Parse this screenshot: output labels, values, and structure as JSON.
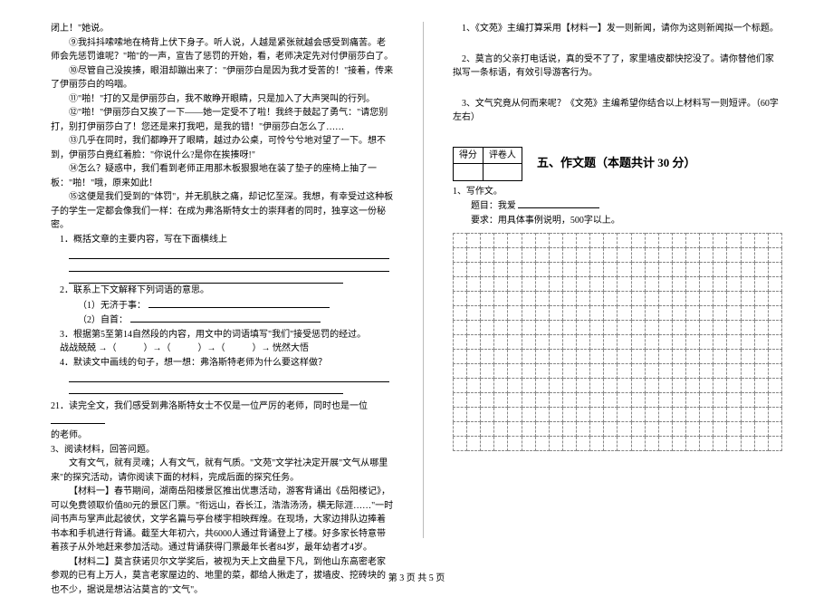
{
  "left": {
    "p1": "闭上！\"她说。",
    "p2": "⑨我抖抖嗦嗦地在椅背上伏下身子。听人说，人越是紧张就越会感受到痛苦。老师会先惩罚谁呢？\"啪\"的一声，宣告了惩罚的开始，看，老师决定先对付伊丽莎白了。",
    "p3": "⑩尽管自己没挨揍，眼泪却蹦出来了：\"伊丽莎白是因为我才受苦的！\"接着，传来了伊丽莎白的呜咽。",
    "p4": "⑪\"啪！\"打的又是伊丽莎白，我不敢睁开眼睛，只是加入了大声哭叫的行列。",
    "p5": "⑫\"啪！\"伊丽莎白又挨了一下——她一定受不了啦！我终于鼓起了勇气：\"请您别打，别打伊丽莎白了！您还是来打我吧，是我的错！\"伊丽莎白怎么了……",
    "p6": "⑬几乎在同时，我们都睁开了眼睛，越过办公桌，可怜兮兮地对望了一下。想不到，伊丽莎白竟红着脸：\"你说什么?是你在挨揍呀!\"",
    "p7": "⑭怎么？疑惑中，我们看到老师正用那木板狠狠地在装了垫子的座椅上抽了一板：\"啪！\"哦，原来如此！",
    "p8": "⑮这便是我们受到的\"体罚\"，并无肌肤之痛，却记忆至深。我想，有幸受过这种板子的学生一定都会像我们一样：在成为弗洛斯特女士的崇拜者的同时，独享这一份秘密。",
    "q1": "1．概括文章的主要内容，写在下面横线上",
    "q2": "2．联系上下文解释下列词语的意思。",
    "q2a": "（1）无济于事：",
    "q2b": "（2）自首：",
    "q3": "3．根据第5至第14自然段的内容，用文中的词语填写\"我们\"接受惩罚的经过。",
    "q3line": "战战兢兢 →（　　　）→（　　　）→（　　　）→ 恍然大悟",
    "q4": "4．默读文中画线的句子，想一想：弗洛斯特老师为什么要这样做？",
    "p21a": "21．读完全文，我们感受到弗洛斯特女士不仅是一位严厉的老师，同时也是一位",
    "p21b": "的老师。",
    "p3title": "3、阅读材料，回答问题。",
    "mIntro": "文有文气，就有灵魂；人有文气，就有气质。\"文苑\"文学社决定开展\"文气从哪里来\"的探究活动，请你阅读下面的材料，完成后面的探究任务。",
    "m1": "【材料一】春节期间，湖南岳阳楼景区推出优惠活动，游客背诵出《岳阳楼记》，可以免费领取价值80元的景区门票。\"衔远山，吞长江，浩浩汤汤，横无际涯……\"一时间书声与掌声此起彼伏，文学名篇与亭台楼宇相映辉煌。在现场，大家边排队边捧着书本和手机进行背诵。截至大年初六，共6000人通过背诵登上了楼。好多家长特意带着孩子从外地赶来参加活动。通过背诵获得门票最年长者84岁，最年幼者才4岁。",
    "m2": "【材料二】莫言获诺贝尔文学奖后，被视为天上文曲星下凡，到他山东高密老家参观的已有上万人，莫言老家屋边的、地里的菜，都给人揪走了，拔墙皮、挖砖块的也不少，据说是想沾沾莫言的\"文气\"。"
  },
  "right": {
    "r1": "1、《文苑》主编打算采用【材料一】发一则新闻，请你为这则新闻拟一个标题。",
    "r2": "2、莫言的父亲打电话说，真的受不了了，家里墙皮都快挖没了。请你替他们家拟写一条标语，有效引导游客行为。",
    "r3": "3、文气究竟从何而来呢？《文苑》主编希望你结合以上材料写一则短评。（60字左右）",
    "scoreHead1": "得分",
    "scoreHead2": "评卷人",
    "sectionTitle": "五、作文题（本题共计 30 分）",
    "w1": "1、写作文。",
    "w2": "题目：我爱",
    "w3": "要求：用具体事例说明，500字以上。"
  },
  "footer": "第 3 页 共 5 页",
  "grid": {
    "rows": 15,
    "cols": 24
  }
}
